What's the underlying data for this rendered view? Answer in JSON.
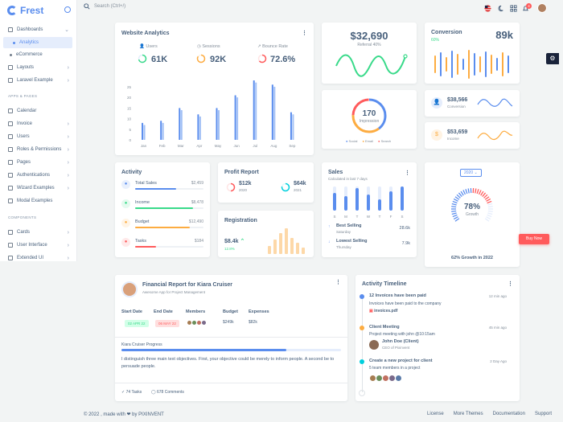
{
  "brand": {
    "name": "Frest"
  },
  "sidebar": {
    "dashboards": "Dashboards",
    "analytics": "Analytics",
    "ecommerce": "eCommerce",
    "layouts": "Layouts",
    "laravel": "Laravel Example",
    "section_apps": "APPS & PAGES",
    "calendar": "Calendar",
    "invoice": "Invoice",
    "users": "Users",
    "roles": "Roles & Permissions",
    "pages": "Pages",
    "auth": "Authentications",
    "wizard": "Wizard Examples",
    "modal": "Modal Examples",
    "section_components": "COMPONENTS",
    "cards": "Cards",
    "ui": "User Interface",
    "extended": "Extended UI"
  },
  "topbar": {
    "search_placeholder": "Search (Ctrl+/)",
    "notification_count": "4"
  },
  "website_analytics": {
    "title": "Website Analytics",
    "users_label": "Users",
    "users_value": "61K",
    "sessions_label": "Sessions",
    "sessions_value": "92K",
    "bounce_label": "Bounce Rate",
    "bounce_value": "72.6%",
    "chart_data": {
      "type": "bar",
      "categories": [
        "Jan",
        "Feb",
        "Mar",
        "Apr",
        "May",
        "Jun",
        "Jul",
        "Aug",
        "Sep"
      ],
      "ytick_labels": [
        "0",
        "5",
        "10",
        "15",
        "20",
        "25"
      ],
      "ylim": [
        0,
        28
      ],
      "series": [
        {
          "values": [
            8,
            9,
            15,
            12,
            15,
            21,
            28,
            26,
            13
          ]
        },
        {
          "values": [
            7,
            8,
            14,
            11,
            14,
            20,
            27,
            25,
            12
          ]
        }
      ]
    }
  },
  "revenue": {
    "value": "$32,690",
    "label": "Referral 40%"
  },
  "conversion": {
    "title": "Conversion",
    "percent": "60%",
    "value": "89k"
  },
  "impression": {
    "value": "170",
    "label": "Impression",
    "legend": [
      "Social",
      "Email",
      "Search"
    ]
  },
  "conversion_small": {
    "value": "$38,566",
    "label": "Conversion"
  },
  "income": {
    "value": "$53,659",
    "label": "Income"
  },
  "activity": {
    "title": "Activity",
    "items": [
      {
        "label": "Total Sales",
        "value": "$2,459",
        "color": "#5a8dee",
        "fill": 0.6
      },
      {
        "label": "Income",
        "value": "$8,478",
        "color": "#39da8a",
        "fill": 0.85
      },
      {
        "label": "Budget",
        "value": "$12,490",
        "color": "#fdac41",
        "fill": 0.8
      },
      {
        "label": "Tasks",
        "value": "$184",
        "color": "#ff5b5c",
        "fill": 0.3
      }
    ]
  },
  "profit_report": {
    "title": "Profit Report",
    "first_value": "$12k",
    "first_year": "2020",
    "second_value": "$64k",
    "second_year": "2021"
  },
  "registration": {
    "title": "Registration",
    "value": "$8.4k",
    "change": "12.8%"
  },
  "sales": {
    "title": "Sales",
    "subtitle": "Calculated in last 7 days",
    "days": [
      "S",
      "M",
      "T",
      "W",
      "T",
      "F",
      "S"
    ],
    "best_label": "Best Selling",
    "best_sub": "Saturday",
    "best_value": "28.6k",
    "lowest_label": "Lowest Selling",
    "lowest_sub": "Thursday",
    "lowest_value": "7.9k"
  },
  "growth": {
    "year": "2020",
    "percent": "78%",
    "label": "Growth",
    "footer": "62% Growth in 2022",
    "fill": 0.78,
    "buy_now": "Buy Now"
  },
  "financial": {
    "title": "Financial Report for Kiara Cruiser",
    "subtitle": "Awesome App for Project Management",
    "start_label": "Start Date",
    "start_value": "02 APR 22",
    "end_label": "End Date",
    "end_value": "06 MAY 22",
    "members_label": "Members",
    "budget_label": "Budget",
    "budget_value": "$249k",
    "expenses_label": "Expenses",
    "expenses_value": "$82k",
    "progress_label": "Kiara Cruiser Progress",
    "progress": 0.75,
    "description": "I distinguish three main text objectives. First, your objective could be merely to inform people. A second be to persuade people.",
    "tasks": "74 Tasks",
    "comments": "678 Comments"
  },
  "timeline": {
    "title": "Activity Timeline",
    "items": [
      {
        "title": "12 Invoices have been paid",
        "time": "12 min ago",
        "desc": "Invoices have been paid to the company",
        "extra": "invoices.pdf",
        "color": "#5a8dee"
      },
      {
        "title": "Client Meeting",
        "time": "45 min ago",
        "desc": "Project meeting with john @10:15am",
        "person": "John Doe (Client)",
        "person_sub": "CEO of Pixinvent",
        "color": "#fdac41"
      },
      {
        "title": "Create a new project for client",
        "time": "2 Day Ago",
        "desc": "5 team members in a project",
        "color": "#00cfdd"
      }
    ]
  },
  "footer": {
    "left": "© 2022 , made with ❤ by PIXINVENT",
    "links": [
      "License",
      "More Themes",
      "Documentation",
      "Support"
    ]
  }
}
